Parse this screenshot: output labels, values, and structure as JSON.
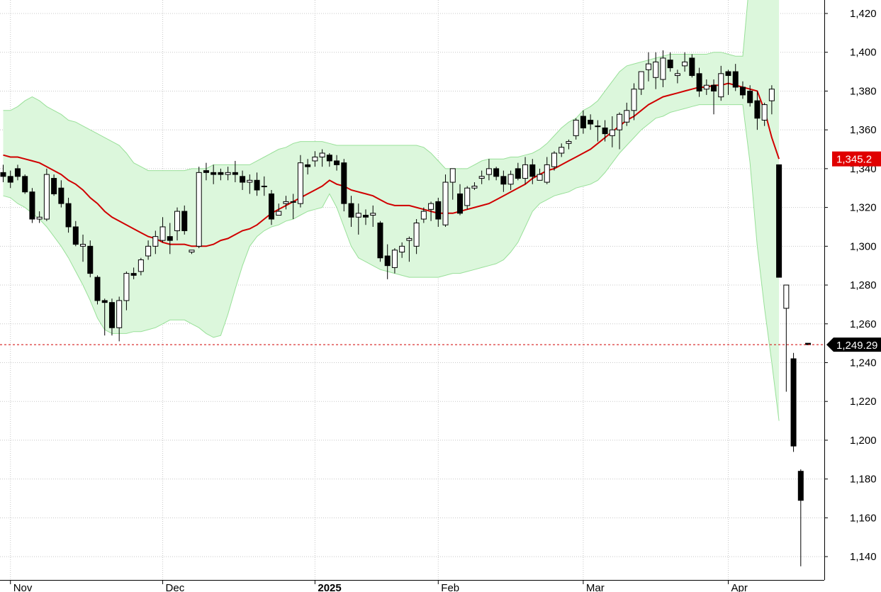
{
  "chart_data": {
    "type": "candlestick",
    "y_ticks": [
      "1,420",
      "1,400",
      "1,380",
      "1,360",
      "1,340",
      "1,320",
      "1,300",
      "1,280",
      "1,260",
      "1,240",
      "1,220",
      "1,200",
      "1,180",
      "1,160",
      "1,140"
    ],
    "y_tick_values": [
      1420,
      1400,
      1380,
      1360,
      1340,
      1320,
      1300,
      1280,
      1260,
      1240,
      1220,
      1200,
      1180,
      1160,
      1140
    ],
    "ylim": [
      1123,
      1425
    ],
    "x_tick_labels": [
      {
        "label": "Nov",
        "index": 1,
        "bold": false
      },
      {
        "label": "Dec",
        "index": 22,
        "bold": false
      },
      {
        "label": "2025",
        "index": 43,
        "bold": true
      },
      {
        "label": "Feb",
        "index": 60,
        "bold": false
      },
      {
        "label": "Mar",
        "index": 80,
        "bold": false
      },
      {
        "label": "Apr",
        "index": 100,
        "bold": false
      }
    ],
    "grid": true,
    "last_price": {
      "label": "1,249.29",
      "value": 1249.29
    },
    "ma_tag": {
      "label": "1,345.2",
      "value": 1345.2
    },
    "colors": {
      "up": "#ffffff",
      "down": "#000000",
      "ma": "#d00000",
      "band_fill": "#dcf7dc",
      "band_line": "#99e099",
      "last_line": "#d00000",
      "ma_tag_bg": "#e00000",
      "price_tag_bg": "#000000"
    },
    "candles": [
      [
        1338,
        1342,
        1333,
        1336
      ],
      [
        1336,
        1339,
        1330,
        1333
      ],
      [
        1340,
        1342,
        1334,
        1336
      ],
      [
        1336,
        1337,
        1327,
        1328
      ],
      [
        1328,
        1330,
        1312,
        1314
      ],
      [
        1314,
        1318,
        1312,
        1315
      ],
      [
        1314,
        1340,
        1313,
        1337
      ],
      [
        1335,
        1337,
        1326,
        1327
      ],
      [
        1330,
        1334,
        1320,
        1322
      ],
      [
        1322,
        1325,
        1307,
        1310
      ],
      [
        1310,
        1313,
        1300,
        1301
      ],
      [
        1300,
        1306,
        1292,
        1301
      ],
      [
        1300,
        1303,
        1284,
        1286
      ],
      [
        1284,
        1285,
        1270,
        1272
      ],
      [
        1272,
        1273,
        1254,
        1271
      ],
      [
        1271,
        1273,
        1254,
        1258
      ],
      [
        1258,
        1274,
        1251,
        1272
      ],
      [
        1272,
        1287,
        1267,
        1286
      ],
      [
        1286,
        1289,
        1283,
        1285
      ],
      [
        1287,
        1294,
        1285,
        1293
      ],
      [
        1295,
        1303,
        1293,
        1300
      ],
      [
        1300,
        1308,
        1296,
        1305
      ],
      [
        1303,
        1315,
        1302,
        1310
      ],
      [
        1305,
        1312,
        1296,
        1303
      ],
      [
        1308,
        1320,
        1303,
        1318
      ],
      [
        1318,
        1321,
        1306,
        1308
      ],
      [
        1297,
        1298,
        1296,
        1298
      ],
      [
        1300,
        1341,
        1299,
        1338
      ],
      [
        1339,
        1343,
        1334,
        1338
      ],
      [
        1338,
        1342,
        1332,
        1337
      ],
      [
        1338,
        1340,
        1334,
        1337
      ],
      [
        1337,
        1341,
        1334,
        1338
      ],
      [
        1338,
        1344,
        1333,
        1337
      ],
      [
        1336,
        1339,
        1329,
        1333
      ],
      [
        1333,
        1337,
        1327,
        1334
      ],
      [
        1334,
        1338,
        1326,
        1329
      ],
      [
        1331,
        1336,
        1326,
        1331
      ],
      [
        1327,
        1329,
        1311,
        1314
      ],
      [
        1316,
        1322,
        1316,
        1318
      ],
      [
        1322,
        1326,
        1319,
        1323
      ],
      [
        1323,
        1327,
        1314,
        1323
      ],
      [
        1322,
        1347,
        1320,
        1343
      ],
      [
        1342,
        1345,
        1337,
        1341
      ],
      [
        1344,
        1349,
        1341,
        1346
      ],
      [
        1346,
        1350,
        1341,
        1348
      ],
      [
        1347,
        1348,
        1341,
        1344
      ],
      [
        1344,
        1347,
        1339,
        1342
      ],
      [
        1343,
        1345,
        1318,
        1322
      ],
      [
        1322,
        1326,
        1310,
        1315
      ],
      [
        1315,
        1322,
        1306,
        1317
      ],
      [
        1316,
        1319,
        1311,
        1315
      ],
      [
        1316,
        1321,
        1310,
        1317
      ],
      [
        1312,
        1313,
        1292,
        1294
      ],
      [
        1295,
        1301,
        1283,
        1290
      ],
      [
        1289,
        1299,
        1286,
        1298
      ],
      [
        1297,
        1302,
        1294,
        1300
      ],
      [
        1303,
        1305,
        1292,
        1304
      ],
      [
        1300,
        1314,
        1296,
        1312
      ],
      [
        1314,
        1320,
        1312,
        1318
      ],
      [
        1319,
        1323,
        1313,
        1322
      ],
      [
        1323,
        1325,
        1310,
        1314
      ],
      [
        1311,
        1337,
        1310,
        1333
      ],
      [
        1333,
        1340,
        1324,
        1340
      ],
      [
        1327,
        1332,
        1316,
        1317
      ],
      [
        1321,
        1331,
        1319,
        1330
      ],
      [
        1330,
        1333,
        1329,
        1331
      ],
      [
        1335,
        1339,
        1332,
        1336
      ],
      [
        1337,
        1345,
        1334,
        1340
      ],
      [
        1340,
        1341,
        1334,
        1336
      ],
      [
        1336,
        1339,
        1328,
        1332
      ],
      [
        1332,
        1339,
        1329,
        1337
      ],
      [
        1340,
        1343,
        1334,
        1335
      ],
      [
        1335,
        1346,
        1332,
        1342
      ],
      [
        1342,
        1345,
        1332,
        1336
      ],
      [
        1334,
        1340,
        1334,
        1337
      ],
      [
        1333,
        1346,
        1332,
        1342
      ],
      [
        1341,
        1349,
        1339,
        1348
      ],
      [
        1348,
        1353,
        1346,
        1351
      ],
      [
        1353,
        1355,
        1350,
        1354
      ],
      [
        1357,
        1366,
        1355,
        1365
      ],
      [
        1367,
        1370,
        1358,
        1361
      ],
      [
        1365,
        1368,
        1360,
        1363
      ],
      [
        1362,
        1365,
        1354,
        1362
      ],
      [
        1361,
        1365,
        1354,
        1358
      ],
      [
        1357,
        1367,
        1351,
        1360
      ],
      [
        1360,
        1369,
        1350,
        1368
      ],
      [
        1364,
        1374,
        1362,
        1370
      ],
      [
        1370,
        1384,
        1365,
        1381
      ],
      [
        1381,
        1390,
        1378,
        1390
      ],
      [
        1391,
        1400,
        1385,
        1394
      ],
      [
        1387,
        1400,
        1381,
        1395
      ],
      [
        1386,
        1401,
        1382,
        1397
      ],
      [
        1396,
        1400,
        1390,
        1392
      ],
      [
        1388,
        1391,
        1384,
        1389
      ],
      [
        1393,
        1400,
        1390,
        1395
      ],
      [
        1397,
        1399,
        1387,
        1388
      ],
      [
        1389,
        1392,
        1377,
        1380
      ],
      [
        1381,
        1386,
        1378,
        1383
      ],
      [
        1383,
        1386,
        1368,
        1380
      ],
      [
        1377,
        1393,
        1375,
        1389
      ],
      [
        1390,
        1391,
        1378,
        1388
      ],
      [
        1390,
        1394,
        1380,
        1382
      ],
      [
        1382,
        1385,
        1376,
        1378
      ],
      [
        1380,
        1383,
        1372,
        1374
      ],
      [
        1375,
        1380,
        1360,
        1366
      ],
      [
        1365,
        1374,
        1362,
        1373
      ],
      [
        1375,
        1383,
        1368,
        1381
      ],
      [
        1342,
        1342,
        1284,
        1284
      ],
      [
        1268,
        1280,
        1225,
        1280
      ],
      [
        1242,
        1245,
        1194,
        1197
      ],
      [
        1184,
        1185,
        1135,
        1169
      ],
      [
        1250,
        1250,
        1249,
        1249.29
      ]
    ],
    "ma": [
      1347,
      1346,
      1346,
      1345,
      1344,
      1343,
      1341,
      1339,
      1337,
      1334,
      1332,
      1329,
      1325,
      1322,
      1318,
      1315,
      1313,
      1311,
      1309,
      1307,
      1305,
      1304,
      1302,
      1301,
      1301,
      1301,
      1300,
      1300,
      1300,
      1301,
      1303,
      1304,
      1306,
      1308,
      1309,
      1311,
      1314,
      1317,
      1319,
      1321,
      1323,
      1325,
      1327,
      1329,
      1331,
      1334,
      1332,
      1331,
      1329,
      1328,
      1327,
      1326,
      1324,
      1322,
      1321,
      1321,
      1321,
      1320,
      1319,
      1318,
      1317,
      1317,
      1317,
      1318,
      1319,
      1320,
      1321,
      1322,
      1324,
      1326,
      1328,
      1330,
      1332,
      1335,
      1337,
      1339,
      1340,
      1342,
      1344,
      1346,
      1348,
      1350,
      1353,
      1356,
      1359,
      1362,
      1365,
      1367,
      1370,
      1373,
      1375,
      1377,
      1378,
      1379,
      1380,
      1381,
      1382,
      1382,
      1383,
      1383,
      1384,
      1383,
      1382,
      1381,
      1380,
      1370,
      1356,
      1345
    ],
    "band_upper": [
      1370,
      1370,
      1372,
      1375,
      1377,
      1375,
      1372,
      1370,
      1368,
      1365,
      1364,
      1362,
      1360,
      1358,
      1356,
      1354,
      1352,
      1348,
      1343,
      1341,
      1339,
      1339,
      1339,
      1339,
      1339,
      1339,
      1340,
      1340,
      1340,
      1342,
      1342,
      1342,
      1342,
      1342,
      1342,
      1344,
      1346,
      1348,
      1350,
      1351,
      1353,
      1354,
      1354,
      1354,
      1354,
      1353,
      1352,
      1352,
      1352,
      1352,
      1352,
      1352,
      1352,
      1352,
      1352,
      1352,
      1352,
      1352,
      1351,
      1348,
      1344,
      1340,
      1340,
      1340,
      1340,
      1342,
      1344,
      1345,
      1345,
      1345,
      1346,
      1346,
      1347,
      1348,
      1350,
      1353,
      1357,
      1361,
      1364,
      1366,
      1370,
      1372,
      1375,
      1380,
      1385,
      1390,
      1393,
      1394,
      1395,
      1396,
      1397,
      1398,
      1399,
      1399,
      1399,
      1399,
      1399,
      1399,
      1400,
      1400,
      1399,
      1398,
      1398,
      1440,
      1480,
      1500,
      1500,
      1500
    ],
    "band_lower": [
      1326,
      1325,
      1322,
      1320,
      1317,
      1314,
      1310,
      1305,
      1300,
      1294,
      1287,
      1280,
      1272,
      1263,
      1257,
      1255,
      1255,
      1255,
      1256,
      1256,
      1257,
      1258,
      1260,
      1262,
      1262,
      1262,
      1260,
      1258,
      1255,
      1253,
      1254,
      1265,
      1278,
      1290,
      1300,
      1305,
      1308,
      1310,
      1311,
      1313,
      1314,
      1316,
      1318,
      1319,
      1320,
      1327,
      1320,
      1310,
      1300,
      1294,
      1292,
      1290,
      1288,
      1287,
      1286,
      1285,
      1284,
      1284,
      1284,
      1284,
      1284,
      1285,
      1286,
      1286,
      1287,
      1288,
      1289,
      1290,
      1291,
      1293,
      1297,
      1302,
      1310,
      1318,
      1322,
      1324,
      1326,
      1327,
      1328,
      1330,
      1331,
      1332,
      1334,
      1338,
      1343,
      1348,
      1352,
      1356,
      1360,
      1363,
      1366,
      1367,
      1369,
      1370,
      1371,
      1372,
      1373,
      1373,
      1373,
      1373,
      1373,
      1373,
      1373,
      1343,
      1300,
      1268,
      1240,
      1210
    ]
  }
}
